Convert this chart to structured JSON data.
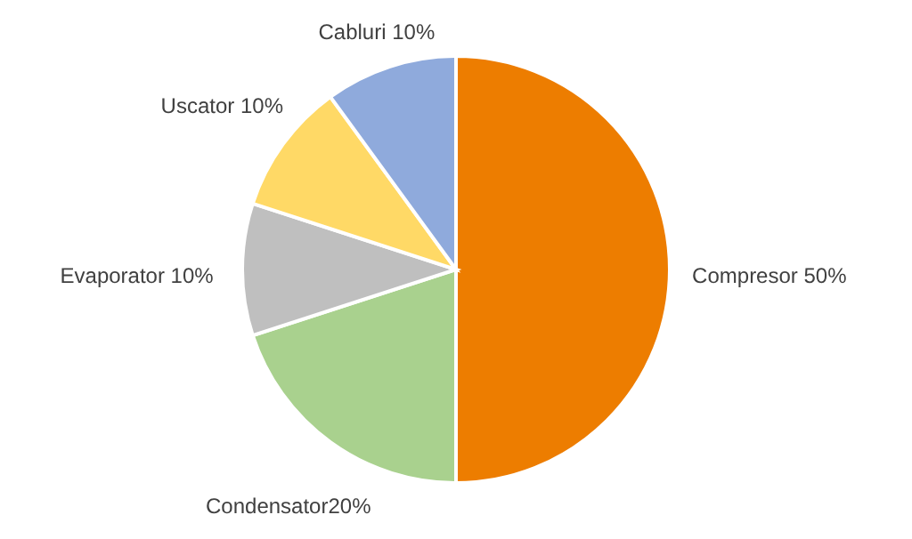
{
  "chart_data": {
    "type": "pie",
    "categories": [
      "Compresor",
      "Condensator",
      "Evaporator",
      "Uscator",
      "Cabluri"
    ],
    "values": [
      50,
      20,
      10,
      10,
      10
    ],
    "colors": [
      "#ed7d00",
      "#a9d18e",
      "#bfbfbf",
      "#ffd966",
      "#8faadc"
    ],
    "value_labels": [
      " 50%",
      "20%",
      " 10%",
      " 10%",
      " 10%"
    ]
  }
}
